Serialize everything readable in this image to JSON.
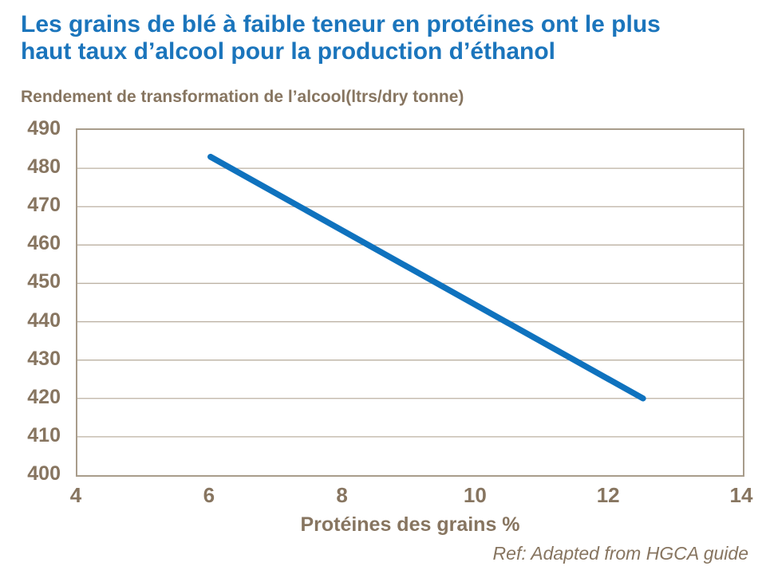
{
  "title": {
    "line1": "Les grains de blé à faible teneur en protéines ont le plus",
    "line2": "haut taux d’alcool pour la production d’éthanol"
  },
  "y_axis_title": "Rendement de transformation de l’alcool(ltrs/dry tonne)",
  "x_axis_title": "Protéines des grains %",
  "footer": "Ref: Adapted from HGCA guide",
  "colors": {
    "title_blue": "#1B75BC",
    "line_blue": "#0F72BE",
    "axis_text_brown": "#877560",
    "gridline": "#BCB1A2",
    "plot_border": "#A89C8B",
    "background": "#FFFFFF"
  },
  "chart_data": {
    "type": "line",
    "title": "Les grains de blé à faible teneur en protéines ont le plus haut taux d’alcool pour la production d’éthanol",
    "xlabel": "Protéines des grains %",
    "ylabel": "Rendement de transformation de l’alcool(ltrs/dry tonne)",
    "xlim": [
      4,
      14
    ],
    "ylim": [
      400,
      490
    ],
    "xticks": [
      4,
      6,
      8,
      10,
      12,
      14
    ],
    "yticks": [
      400,
      410,
      420,
      430,
      440,
      450,
      460,
      470,
      480,
      490
    ],
    "grid": "horizontal",
    "legend_position": "none",
    "series": [
      {
        "name": "Rendement de transformation de l’alcool",
        "color": "#0F72BE",
        "points": [
          [
            6,
            483
          ],
          [
            12.5,
            420
          ]
        ]
      }
    ],
    "annotation": "Ref: Adapted from HGCA guide"
  }
}
